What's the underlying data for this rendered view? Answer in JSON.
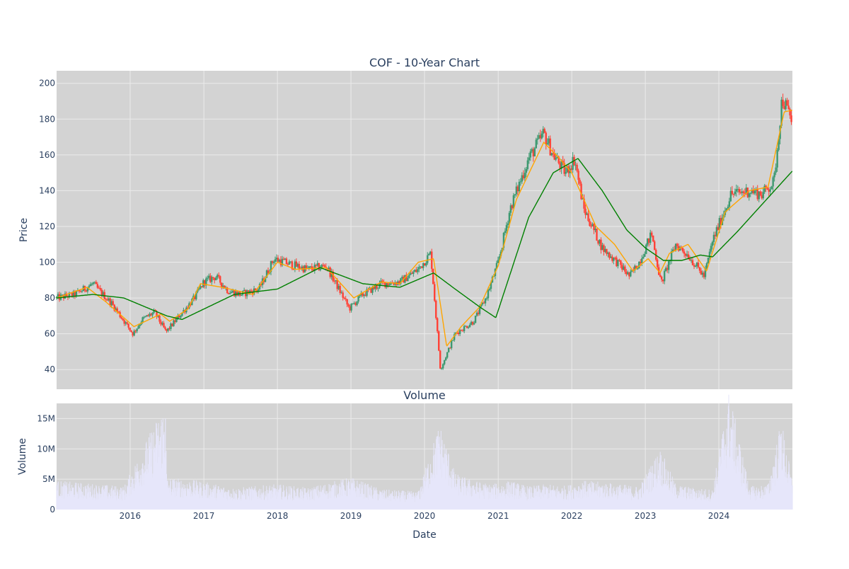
{
  "chart_data": [
    {
      "type": "candlestick",
      "title": "COF - 10-Year Chart",
      "xlabel": "",
      "ylabel": "Price",
      "x_range": [
        "2015-01-01",
        "2024-12-31"
      ],
      "ylim": [
        29,
        207
      ],
      "y_ticks": [
        40,
        60,
        80,
        100,
        120,
        140,
        160,
        180,
        200
      ],
      "grid": true,
      "plot_background": "#d3d3d3",
      "legend": "none",
      "colors": {
        "increasing": "#3d9970",
        "decreasing": "#ff4136",
        "ma_short": "#ffa500",
        "ma_long": "#008000"
      },
      "series": [
        {
          "role": "close",
          "x": [
            "2015-01-01",
            "2015-04-01",
            "2015-07-01",
            "2015-08-01",
            "2015-10-01",
            "2016-01-15",
            "2016-03-01",
            "2016-05-01",
            "2016-06-27",
            "2016-09-01",
            "2016-11-15",
            "2017-01-01",
            "2017-03-01",
            "2017-05-01",
            "2017-07-01",
            "2017-10-01",
            "2017-12-15",
            "2018-03-01",
            "2018-06-01",
            "2018-09-01",
            "2018-12-24",
            "2019-03-01",
            "2019-06-01",
            "2019-09-01",
            "2019-12-01",
            "2020-02-01",
            "2020-03-20",
            "2020-06-01",
            "2020-09-01",
            "2020-11-01",
            "2021-01-01",
            "2021-03-01",
            "2021-06-01",
            "2021-08-15",
            "2021-10-01",
            "2021-12-01",
            "2022-01-15",
            "2022-03-01",
            "2022-06-01",
            "2022-09-01",
            "2022-10-15",
            "2022-12-01",
            "2023-02-01",
            "2023-03-20",
            "2023-06-01",
            "2023-08-01",
            "2023-10-20",
            "2023-12-01",
            "2024-03-01",
            "2024-06-01",
            "2024-08-01",
            "2024-10-01",
            "2024-11-10",
            "2024-12-31"
          ],
          "values": [
            80,
            82,
            88,
            84,
            77,
            60,
            68,
            72,
            61,
            70,
            80,
            89,
            92,
            84,
            82,
            85,
            102,
            99,
            96,
            98,
            74,
            82,
            88,
            89,
            96,
            105,
            40,
            60,
            67,
            80,
            100,
            130,
            158,
            172,
            160,
            150,
            158,
            130,
            108,
            98,
            92,
            100,
            116,
            88,
            110,
            104,
            92,
            112,
            138,
            140,
            138,
            145,
            192,
            178
          ]
        },
        {
          "role": "ma_short",
          "x": [
            "2015-01-01",
            "2015-06-01",
            "2015-09-01",
            "2016-01-20",
            "2016-06-01",
            "2016-07-15",
            "2016-10-15",
            "2016-12-15",
            "2017-04-01",
            "2017-09-01",
            "2018-01-01",
            "2018-04-01",
            "2018-09-01",
            "2019-01-15",
            "2019-06-01",
            "2019-09-01",
            "2019-12-01",
            "2020-02-15",
            "2020-04-20",
            "2020-07-01",
            "2020-10-01",
            "2021-01-01",
            "2021-04-01",
            "2021-08-15",
            "2021-11-01",
            "2022-01-01",
            "2022-05-01",
            "2022-08-01",
            "2022-11-01",
            "2023-01-15",
            "2023-03-15",
            "2023-05-01",
            "2023-08-01",
            "2023-11-01",
            "2024-02-01",
            "2024-06-01",
            "2024-09-01",
            "2024-11-20",
            "2024-12-31"
          ],
          "values": [
            80,
            86,
            78,
            64,
            71,
            67,
            74,
            88,
            86,
            82,
            100,
            96,
            97,
            80,
            89,
            88,
            100,
            102,
            53,
            64,
            75,
            98,
            135,
            167,
            158,
            150,
            120,
            110,
            95,
            102,
            94,
            105,
            110,
            95,
            128,
            140,
            142,
            184,
            185
          ]
        },
        {
          "role": "ma_long",
          "x": [
            "2015-01-01",
            "2015-07-01",
            "2015-12-01",
            "2016-07-01",
            "2016-09-15",
            "2017-06-01",
            "2018-01-01",
            "2018-08-01",
            "2019-03-01",
            "2019-09-01",
            "2020-02-15",
            "2020-06-01",
            "2020-10-01",
            "2020-12-20",
            "2021-06-01",
            "2021-10-01",
            "2022-02-01",
            "2022-06-01",
            "2022-10-01",
            "2023-01-01",
            "2023-04-01",
            "2023-07-01",
            "2023-10-01",
            "2023-12-01",
            "2024-04-01",
            "2024-09-01",
            "2024-12-31"
          ],
          "values": [
            80,
            82,
            80,
            70,
            68,
            82,
            85,
            97,
            88,
            86,
            94,
            85,
            75,
            69,
            125,
            150,
            158,
            140,
            118,
            108,
            101,
            101,
            104,
            103,
            117,
            136,
            151
          ]
        }
      ]
    },
    {
      "type": "bar",
      "title": "Volume",
      "xlabel": "Date",
      "ylabel": "Volume",
      "x_range": [
        "2015-01-01",
        "2024-12-31"
      ],
      "ylim": [
        0,
        17500000
      ],
      "y_ticks": [
        0,
        5000000,
        10000000,
        15000000
      ],
      "y_tick_labels": [
        "0",
        "5M",
        "10M",
        "15M"
      ],
      "x_ticks": [
        "2016-01-01",
        "2017-01-01",
        "2018-01-01",
        "2019-01-01",
        "2020-01-01",
        "2021-01-01",
        "2022-01-01",
        "2023-01-01",
        "2024-01-01"
      ],
      "x_tick_labels": [
        "2016",
        "2017",
        "2018",
        "2019",
        "2020",
        "2021",
        "2022",
        "2023",
        "2024"
      ],
      "grid": true,
      "bar_color": "#e6e6fa",
      "series": [
        {
          "name": "",
          "x": [
            "2015-01-01",
            "2015-08-01",
            "2015-12-01",
            "2016-06-24",
            "2016-07-01",
            "2016-12-01",
            "2017-06-01",
            "2018-01-01",
            "2018-06-01",
            "2019-01-01",
            "2019-06-01",
            "2019-12-01",
            "2020-03-15",
            "2020-04-20",
            "2020-06-01",
            "2020-09-01",
            "2020-12-01",
            "2021-03-01",
            "2021-06-01",
            "2021-09-01",
            "2021-12-01",
            "2022-03-01",
            "2022-06-01",
            "2022-09-01",
            "2022-12-01",
            "2023-03-15",
            "2023-06-01",
            "2023-09-01",
            "2023-12-01",
            "2024-02-20",
            "2024-06-01",
            "2024-09-01",
            "2024-11-06",
            "2024-12-31"
          ],
          "values": [
            4000000,
            3500000,
            3200000,
            15000000,
            4500000,
            4000000,
            3000000,
            3500000,
            3000000,
            4500000,
            2800000,
            2500000,
            12000000,
            9000000,
            5000000,
            4000000,
            3500000,
            4000000,
            3200000,
            3500000,
            3300000,
            4000000,
            3800000,
            3500000,
            3200000,
            8500000,
            3500000,
            3000000,
            2800000,
            16500000,
            3200000,
            3500000,
            12500000,
            4000000
          ]
        }
      ]
    }
  ]
}
